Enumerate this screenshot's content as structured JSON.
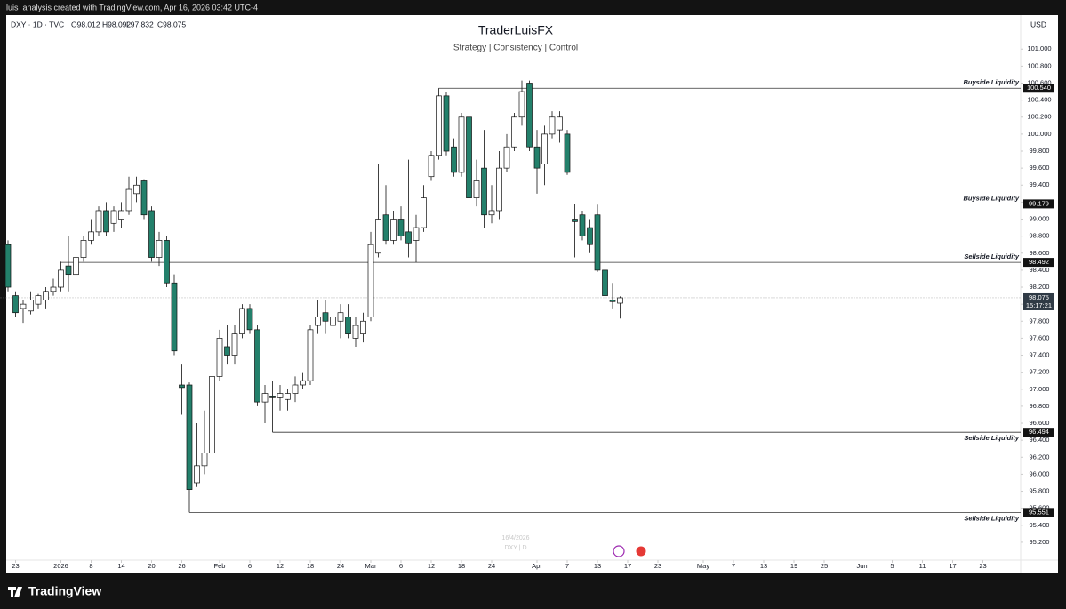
{
  "credit": "luis_analysis created with TradingView.com, Apr 16, 2026 03:42 UTC-4",
  "brand": "TradingView",
  "chart_data": {
    "type": "candlestick",
    "title": "TraderLuisFX",
    "subtitle": "Strategy | Consistency | Control",
    "symbol": "DXY · 1D · TVC",
    "ohlc_legend": [
      "O98.012",
      "H98.092",
      "L97.832",
      "C98.075"
    ],
    "currency": "USD",
    "watermark": [
      "16/4/2026",
      "DXY | D"
    ],
    "countdown": "15:17:21",
    "up_color": "#ffffff",
    "down_color": "#23806b",
    "wick_color": "#111111",
    "open": [
      98.7,
      98.1,
      97.95,
      97.92,
      98.0,
      98.05,
      98.15,
      98.2,
      98.45,
      98.35,
      98.55,
      98.75,
      98.85,
      99.1,
      98.95,
      99.0,
      99.1,
      99.3,
      99.45,
      99.1,
      98.55,
      98.75,
      98.25,
      97.05,
      97.05,
      95.9,
      96.1,
      96.25,
      97.15,
      97.5,
      97.4,
      97.65,
      97.95,
      97.7,
      96.85,
      96.92,
      96.9,
      96.88,
      96.95,
      97.05,
      97.1,
      97.75,
      97.9,
      97.75,
      97.8,
      97.85,
      97.6,
      97.65,
      97.85,
      98.6,
      99.05,
      98.75,
      99.0,
      98.85,
      98.75,
      98.9,
      99.5,
      99.75,
      100.45,
      99.85,
      99.55,
      100.2,
      99.25,
      99.6,
      99.05,
      99.1,
      99.6,
      99.85,
      100.2,
      100.6,
      99.85,
      99.65,
      100.0,
      100.05,
      100.0,
      99.0,
      99.05,
      98.9,
      99.05,
      98.4,
      98.05,
      98.012
    ],
    "high": [
      98.75,
      98.15,
      98.05,
      98.15,
      98.12,
      98.2,
      98.3,
      98.5,
      98.8,
      98.65,
      98.8,
      99.0,
      99.15,
      99.2,
      99.15,
      99.2,
      99.5,
      99.5,
      99.47,
      99.15,
      98.85,
      98.8,
      98.35,
      97.3,
      97.08,
      96.6,
      96.75,
      97.2,
      97.7,
      97.75,
      97.75,
      98.0,
      98.0,
      97.75,
      97.05,
      97.1,
      97.05,
      97.0,
      97.15,
      97.2,
      97.75,
      98.05,
      98.05,
      97.95,
      98.0,
      98.0,
      97.85,
      97.9,
      98.85,
      99.65,
      99.4,
      99.1,
      99.15,
      99.7,
      99.05,
      99.4,
      99.8,
      100.54,
      100.5,
      99.95,
      100.25,
      100.3,
      99.7,
      100.05,
      99.4,
      99.8,
      100.0,
      100.25,
      100.63,
      100.63,
      100.05,
      100.1,
      100.27,
      100.27,
      100.05,
      99.179,
      99.1,
      99.0,
      99.17,
      98.45,
      98.25,
      98.092
    ],
    "low": [
      98.15,
      97.85,
      97.78,
      97.88,
      97.95,
      97.95,
      98.1,
      98.15,
      98.15,
      98.1,
      98.5,
      98.7,
      98.8,
      98.8,
      98.85,
      98.9,
      99.05,
      99.2,
      99.0,
      98.5,
      98.45,
      98.2,
      97.4,
      96.7,
      95.551,
      95.85,
      96.0,
      96.2,
      97.1,
      97.3,
      97.3,
      97.6,
      97.65,
      96.8,
      96.6,
      96.494,
      96.75,
      96.75,
      96.85,
      97.0,
      97.05,
      97.65,
      97.65,
      97.35,
      97.6,
      97.6,
      97.5,
      97.55,
      97.8,
      98.55,
      98.7,
      98.7,
      98.75,
      98.55,
      98.492,
      98.85,
      99.45,
      99.7,
      99.75,
      99.5,
      99.5,
      98.95,
      99.15,
      98.9,
      98.95,
      99.0,
      99.55,
      99.8,
      100.1,
      99.8,
      99.3,
      99.4,
      99.95,
      99.9,
      99.52,
      98.55,
      98.75,
      98.6,
      98.38,
      98.0,
      97.95,
      97.832
    ],
    "close": [
      98.2,
      97.9,
      98.0,
      98.05,
      98.1,
      98.15,
      98.2,
      98.4,
      98.35,
      98.55,
      98.75,
      98.85,
      99.1,
      98.85,
      99.1,
      99.1,
      99.35,
      99.4,
      99.05,
      98.55,
      98.75,
      98.25,
      97.45,
      97.02,
      95.82,
      96.1,
      96.25,
      97.15,
      97.6,
      97.4,
      97.65,
      97.95,
      97.7,
      96.85,
      96.95,
      96.9,
      96.95,
      96.95,
      97.05,
      97.1,
      97.7,
      97.85,
      97.8,
      97.85,
      97.9,
      97.65,
      97.75,
      97.8,
      98.7,
      99.0,
      98.75,
      99.0,
      98.8,
      98.72,
      98.9,
      99.25,
      99.75,
      100.45,
      99.8,
      99.55,
      100.2,
      99.25,
      99.45,
      99.05,
      99.1,
      99.6,
      99.85,
      100.2,
      100.5,
      99.85,
      99.6,
      100.0,
      100.2,
      100.2,
      99.55,
      98.97,
      98.8,
      98.7,
      98.4,
      98.1,
      98.03,
      98.075
    ],
    "levels": [
      {
        "label": "Buyside Liquidity",
        "value": 100.54,
        "price_label": "100.540"
      },
      {
        "label": "Buyside Liquidity",
        "value": 99.179,
        "price_label": "99.179"
      },
      {
        "label": "Sellside Liquidity",
        "value": 98.492,
        "price_label": "98.492"
      },
      {
        "label": "Sellside Liquidity",
        "value": 96.494,
        "price_label": "96.494"
      },
      {
        "label": "Sellside Liquidity",
        "value": 95.551,
        "price_label": "95.551"
      }
    ],
    "xlim": [
      -1,
      134
    ],
    "xticks": [
      {
        "value": 1,
        "label": "23"
      },
      {
        "value": 7,
        "label": "2026"
      },
      {
        "value": 11,
        "label": "8"
      },
      {
        "value": 15,
        "label": "14"
      },
      {
        "value": 19,
        "label": "20"
      },
      {
        "value": 23,
        "label": "26"
      },
      {
        "value": 28,
        "label": "Feb"
      },
      {
        "value": 32,
        "label": "6"
      },
      {
        "value": 36,
        "label": "12"
      },
      {
        "value": 40,
        "label": "18"
      },
      {
        "value": 44,
        "label": "24"
      },
      {
        "value": 48,
        "label": "Mar"
      },
      {
        "value": 52,
        "label": "6"
      },
      {
        "value": 56,
        "label": "12"
      },
      {
        "value": 60,
        "label": "18"
      },
      {
        "value": 64,
        "label": "24"
      },
      {
        "value": 70,
        "label": "Apr"
      },
      {
        "value": 74,
        "label": "7"
      },
      {
        "value": 78,
        "label": "13"
      },
      {
        "value": 82,
        "label": "17"
      },
      {
        "value": 86,
        "label": "23"
      },
      {
        "value": 92,
        "label": "May"
      },
      {
        "value": 96,
        "label": "7"
      },
      {
        "value": 100,
        "label": "13"
      },
      {
        "value": 104,
        "label": "19"
      },
      {
        "value": 108,
        "label": "25"
      },
      {
        "value": 113,
        "label": "Jun"
      },
      {
        "value": 117,
        "label": "5"
      },
      {
        "value": 121,
        "label": "11"
      },
      {
        "value": 125,
        "label": "17"
      },
      {
        "value": 129,
        "label": "23"
      }
    ],
    "ylim": [
      94.99,
      101.4
    ],
    "yticks": [
      {
        "value": 95.2,
        "label": "95.200"
      },
      {
        "value": 95.4,
        "label": "95.400"
      },
      {
        "value": 95.6,
        "label": "95.600"
      },
      {
        "value": 95.8,
        "label": "95.800"
      },
      {
        "value": 96.0,
        "label": "96.000"
      },
      {
        "value": 96.2,
        "label": "96.200"
      },
      {
        "value": 96.4,
        "label": "96.400"
      },
      {
        "value": 96.6,
        "label": "96.600"
      },
      {
        "value": 96.8,
        "label": "96.800"
      },
      {
        "value": 97.0,
        "label": "97.000"
      },
      {
        "value": 97.2,
        "label": "97.200"
      },
      {
        "value": 97.4,
        "label": "97.400"
      },
      {
        "value": 97.6,
        "label": "97.600"
      },
      {
        "value": 97.8,
        "label": "97.800"
      },
      {
        "value": 98.0,
        "label": "98.000"
      },
      {
        "value": 98.2,
        "label": "98.200"
      },
      {
        "value": 98.4,
        "label": "98.400"
      },
      {
        "value": 98.6,
        "label": "98.600"
      },
      {
        "value": 98.8,
        "label": "98.800"
      },
      {
        "value": 99.0,
        "label": "99.000"
      },
      {
        "value": 99.2,
        "label": "99.200"
      },
      {
        "value": 99.4,
        "label": "99.400"
      },
      {
        "value": 99.6,
        "label": "99.600"
      },
      {
        "value": 99.8,
        "label": "99.800"
      },
      {
        "value": 100.0,
        "label": "100.000"
      },
      {
        "value": 100.2,
        "label": "100.200"
      },
      {
        "value": 100.4,
        "label": "100.400"
      },
      {
        "value": 100.6,
        "label": "100.600"
      },
      {
        "value": 100.8,
        "label": "100.800"
      },
      {
        "value": 101.0,
        "label": "101.000"
      }
    ]
  }
}
